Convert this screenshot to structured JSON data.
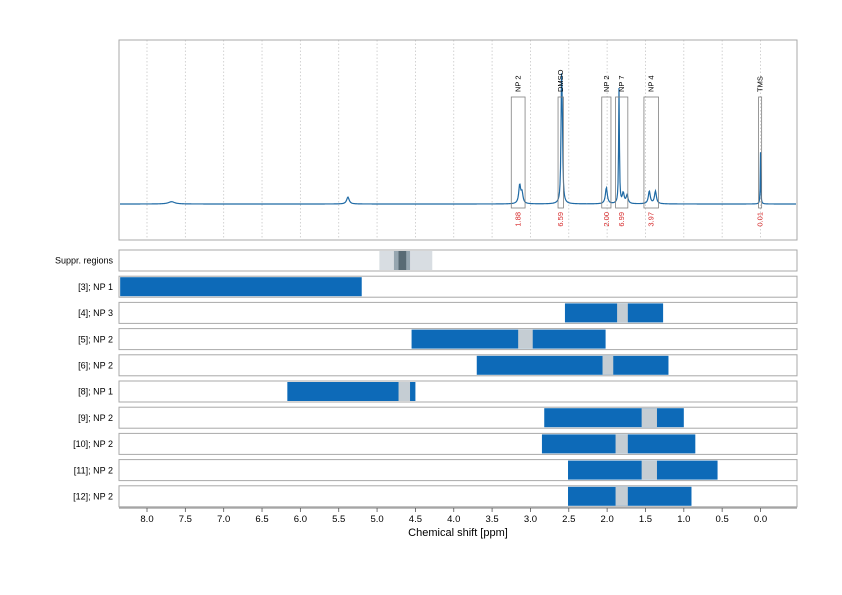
{
  "chart_data": {
    "type": "bar",
    "xlabel": "Chemical shift [ppm]",
    "xlim": [
      8.35,
      -0.5
    ],
    "x_reversed": true,
    "x_ticks": [
      "8.0",
      "7.5",
      "7.0",
      "6.5",
      "6.0",
      "5.5",
      "5.0",
      "4.5",
      "4.0",
      "3.5",
      "3.0",
      "2.5",
      "2.0",
      "1.5",
      "1.0",
      "0.5",
      "0.0"
    ],
    "grid": "vertical dotted",
    "spectrum": {
      "baseline": 0.0,
      "peaks": [
        {
          "shift": 7.68,
          "height": 0.02,
          "width": 0.05
        },
        {
          "shift": 5.38,
          "height": 0.06,
          "width": 0.02
        },
        {
          "shift": 3.14,
          "height": 0.16,
          "width": 0.015
        },
        {
          "shift": 3.11,
          "height": 0.09,
          "width": 0.015
        },
        {
          "shift": 2.595,
          "height": 0.92,
          "width": 0.008
        },
        {
          "shift": 2.585,
          "height": 0.55,
          "width": 0.008
        },
        {
          "shift": 2.01,
          "height": 0.14,
          "width": 0.015
        },
        {
          "shift": 1.845,
          "height": 1.0,
          "width": 0.006
        },
        {
          "shift": 1.79,
          "height": 0.09,
          "width": 0.015
        },
        {
          "shift": 1.74,
          "height": 0.07,
          "width": 0.015
        },
        {
          "shift": 1.45,
          "height": 0.11,
          "width": 0.015
        },
        {
          "shift": 1.37,
          "height": 0.11,
          "width": 0.015
        },
        {
          "shift": 0.0,
          "height": 0.45,
          "width": 0.004
        }
      ]
    },
    "annotations": [
      {
        "label": "NP 2",
        "from": 3.25,
        "to": 3.07,
        "integral": "1.88"
      },
      {
        "label": "DMSO",
        "from": 2.64,
        "to": 2.57,
        "integral": "6.59"
      },
      {
        "label": "NP 2",
        "from": 2.07,
        "to": 1.95,
        "integral": "2.00"
      },
      {
        "label": "NP 7",
        "from": 1.89,
        "to": 1.73,
        "integral": "6.99"
      },
      {
        "label": "NP 4",
        "from": 1.52,
        "to": 1.33,
        "integral": "3.97"
      },
      {
        "label": "TMS",
        "from": 0.025,
        "to": -0.015,
        "integral": "0.01"
      }
    ],
    "rows": [
      {
        "label": "Suppr. regions",
        "kind": "suppression",
        "bands": [
          {
            "from": 4.97,
            "to": 4.28,
            "shade": "light"
          },
          {
            "from": 4.78,
            "to": 4.57,
            "shade": "mid"
          },
          {
            "from": 4.72,
            "to": 4.62,
            "shade": "dark"
          }
        ]
      },
      {
        "label": "[3]; NP 1",
        "from": 8.35,
        "to": 5.2,
        "gaps": []
      },
      {
        "label": "[4]; NP 3",
        "from": 2.55,
        "to": 1.27,
        "gaps": [
          [
            1.87,
            1.73
          ]
        ]
      },
      {
        "label": "[5]; NP 2",
        "from": 4.55,
        "to": 2.02,
        "gaps": [
          [
            3.16,
            2.97
          ]
        ]
      },
      {
        "label": "[6]; NP 2",
        "from": 3.7,
        "to": 1.2,
        "gaps": [
          [
            2.06,
            1.92
          ]
        ]
      },
      {
        "label": "[8]; NP 1",
        "from": 6.17,
        "to": 4.5,
        "gaps": [
          [
            4.72,
            4.57
          ]
        ]
      },
      {
        "label": "[9]; NP 2",
        "from": 2.82,
        "to": 1.0,
        "gaps": [
          [
            1.55,
            1.35
          ]
        ]
      },
      {
        "label": "[10]; NP 2",
        "from": 2.85,
        "to": 0.85,
        "gaps": [
          [
            1.89,
            1.73
          ]
        ]
      },
      {
        "label": "[11]; NP 2",
        "from": 2.51,
        "to": 0.56,
        "gaps": [
          [
            1.55,
            1.35
          ]
        ]
      },
      {
        "label": "[12]; NP 2",
        "from": 2.51,
        "to": 0.9,
        "gaps": [
          [
            1.89,
            1.73
          ]
        ]
      }
    ],
    "colors": {
      "spectrum": "#1f6aa5",
      "bar": "#0d6ab8",
      "gap": "#c5cdd3",
      "frame": "#a9a9a9",
      "grid": "#c8c8c8",
      "integral": "#d62728",
      "suppr_light": "#d8dde2",
      "suppr_mid": "#96a6b0",
      "suppr_dark": "#586a74"
    }
  }
}
